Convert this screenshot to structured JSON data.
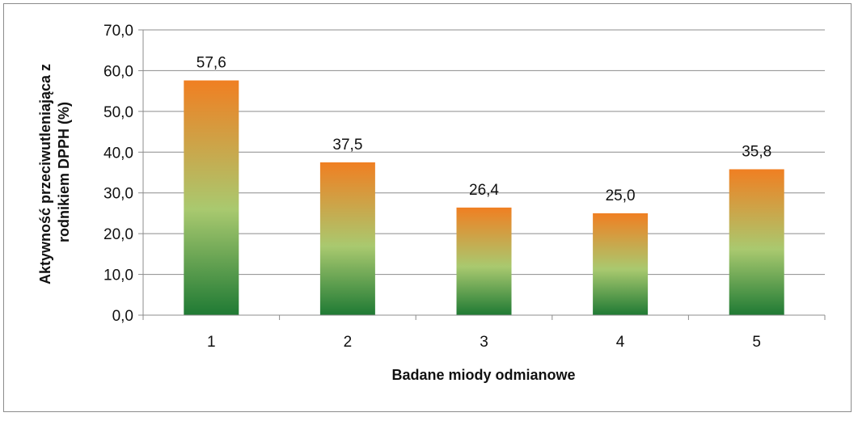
{
  "chart_data": {
    "type": "bar",
    "categories": [
      "1",
      "2",
      "3",
      "4",
      "5"
    ],
    "values": [
      57.6,
      37.5,
      26.4,
      25.0,
      35.8
    ],
    "value_labels": [
      "57,6",
      "37,5",
      "26,4",
      "25,0",
      "35,8"
    ],
    "title": "",
    "xlabel": "Badane miody odmianowe",
    "ylabel_lines": [
      "Aktywność przeciwutleniająca z",
      "rodnikiem DPPH (%)"
    ],
    "ylim": [
      0,
      70
    ],
    "yticks": [
      0,
      10,
      20,
      30,
      40,
      50,
      60,
      70
    ],
    "ytick_labels": [
      "0,0",
      "10,0",
      "20,0",
      "30,0",
      "40,0",
      "50,0",
      "60,0",
      "70,0"
    ],
    "grid": true,
    "legend": "none",
    "colors": {
      "bar_top": "#f07f22",
      "bar_mid": "#a9c96f",
      "bar_bottom": "#1f7a34",
      "gridline": "#8c8c8c",
      "axis": "#8c8c8c",
      "border": "#8c8c8c"
    }
  }
}
